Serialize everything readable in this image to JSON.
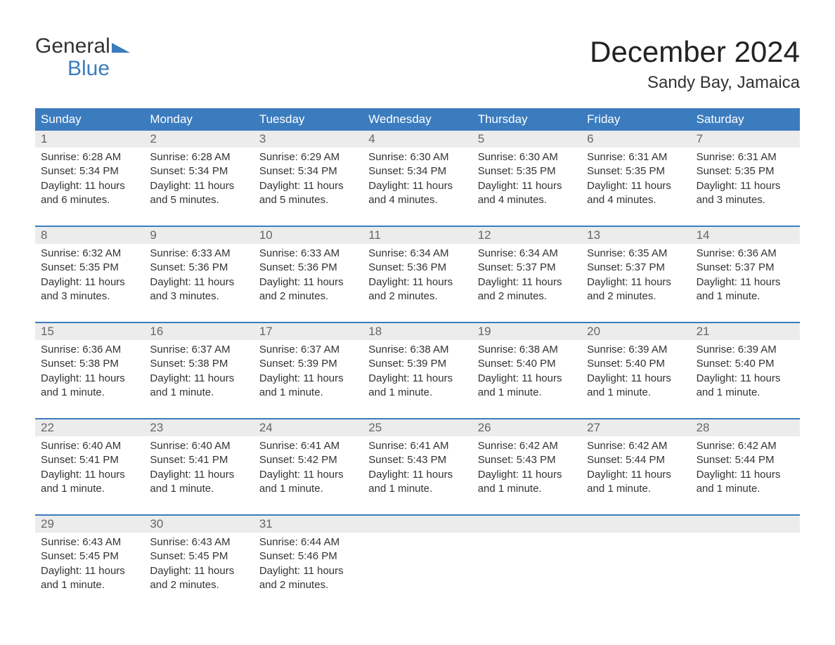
{
  "logo": {
    "word1": "General",
    "word2": "Blue"
  },
  "colors": {
    "brand_blue": "#3b7cbf",
    "header_bg": "#3b7cbf",
    "header_text": "#ffffff",
    "daynum_bg": "#ececec",
    "daynum_text": "#666666",
    "body_text": "#333333",
    "page_bg": "#ffffff"
  },
  "title": "December 2024",
  "subtitle": "Sandy Bay, Jamaica",
  "day_names": [
    "Sunday",
    "Monday",
    "Tuesday",
    "Wednesday",
    "Thursday",
    "Friday",
    "Saturday"
  ],
  "weeks": [
    [
      {
        "n": "1",
        "sunrise": "Sunrise: 6:28 AM",
        "sunset": "Sunset: 5:34 PM",
        "d1": "Daylight: 11 hours",
        "d2": "and 6 minutes."
      },
      {
        "n": "2",
        "sunrise": "Sunrise: 6:28 AM",
        "sunset": "Sunset: 5:34 PM",
        "d1": "Daylight: 11 hours",
        "d2": "and 5 minutes."
      },
      {
        "n": "3",
        "sunrise": "Sunrise: 6:29 AM",
        "sunset": "Sunset: 5:34 PM",
        "d1": "Daylight: 11 hours",
        "d2": "and 5 minutes."
      },
      {
        "n": "4",
        "sunrise": "Sunrise: 6:30 AM",
        "sunset": "Sunset: 5:34 PM",
        "d1": "Daylight: 11 hours",
        "d2": "and 4 minutes."
      },
      {
        "n": "5",
        "sunrise": "Sunrise: 6:30 AM",
        "sunset": "Sunset: 5:35 PM",
        "d1": "Daylight: 11 hours",
        "d2": "and 4 minutes."
      },
      {
        "n": "6",
        "sunrise": "Sunrise: 6:31 AM",
        "sunset": "Sunset: 5:35 PM",
        "d1": "Daylight: 11 hours",
        "d2": "and 4 minutes."
      },
      {
        "n": "7",
        "sunrise": "Sunrise: 6:31 AM",
        "sunset": "Sunset: 5:35 PM",
        "d1": "Daylight: 11 hours",
        "d2": "and 3 minutes."
      }
    ],
    [
      {
        "n": "8",
        "sunrise": "Sunrise: 6:32 AM",
        "sunset": "Sunset: 5:35 PM",
        "d1": "Daylight: 11 hours",
        "d2": "and 3 minutes."
      },
      {
        "n": "9",
        "sunrise": "Sunrise: 6:33 AM",
        "sunset": "Sunset: 5:36 PM",
        "d1": "Daylight: 11 hours",
        "d2": "and 3 minutes."
      },
      {
        "n": "10",
        "sunrise": "Sunrise: 6:33 AM",
        "sunset": "Sunset: 5:36 PM",
        "d1": "Daylight: 11 hours",
        "d2": "and 2 minutes."
      },
      {
        "n": "11",
        "sunrise": "Sunrise: 6:34 AM",
        "sunset": "Sunset: 5:36 PM",
        "d1": "Daylight: 11 hours",
        "d2": "and 2 minutes."
      },
      {
        "n": "12",
        "sunrise": "Sunrise: 6:34 AM",
        "sunset": "Sunset: 5:37 PM",
        "d1": "Daylight: 11 hours",
        "d2": "and 2 minutes."
      },
      {
        "n": "13",
        "sunrise": "Sunrise: 6:35 AM",
        "sunset": "Sunset: 5:37 PM",
        "d1": "Daylight: 11 hours",
        "d2": "and 2 minutes."
      },
      {
        "n": "14",
        "sunrise": "Sunrise: 6:36 AM",
        "sunset": "Sunset: 5:37 PM",
        "d1": "Daylight: 11 hours",
        "d2": "and 1 minute."
      }
    ],
    [
      {
        "n": "15",
        "sunrise": "Sunrise: 6:36 AM",
        "sunset": "Sunset: 5:38 PM",
        "d1": "Daylight: 11 hours",
        "d2": "and 1 minute."
      },
      {
        "n": "16",
        "sunrise": "Sunrise: 6:37 AM",
        "sunset": "Sunset: 5:38 PM",
        "d1": "Daylight: 11 hours",
        "d2": "and 1 minute."
      },
      {
        "n": "17",
        "sunrise": "Sunrise: 6:37 AM",
        "sunset": "Sunset: 5:39 PM",
        "d1": "Daylight: 11 hours",
        "d2": "and 1 minute."
      },
      {
        "n": "18",
        "sunrise": "Sunrise: 6:38 AM",
        "sunset": "Sunset: 5:39 PM",
        "d1": "Daylight: 11 hours",
        "d2": "and 1 minute."
      },
      {
        "n": "19",
        "sunrise": "Sunrise: 6:38 AM",
        "sunset": "Sunset: 5:40 PM",
        "d1": "Daylight: 11 hours",
        "d2": "and 1 minute."
      },
      {
        "n": "20",
        "sunrise": "Sunrise: 6:39 AM",
        "sunset": "Sunset: 5:40 PM",
        "d1": "Daylight: 11 hours",
        "d2": "and 1 minute."
      },
      {
        "n": "21",
        "sunrise": "Sunrise: 6:39 AM",
        "sunset": "Sunset: 5:40 PM",
        "d1": "Daylight: 11 hours",
        "d2": "and 1 minute."
      }
    ],
    [
      {
        "n": "22",
        "sunrise": "Sunrise: 6:40 AM",
        "sunset": "Sunset: 5:41 PM",
        "d1": "Daylight: 11 hours",
        "d2": "and 1 minute."
      },
      {
        "n": "23",
        "sunrise": "Sunrise: 6:40 AM",
        "sunset": "Sunset: 5:41 PM",
        "d1": "Daylight: 11 hours",
        "d2": "and 1 minute."
      },
      {
        "n": "24",
        "sunrise": "Sunrise: 6:41 AM",
        "sunset": "Sunset: 5:42 PM",
        "d1": "Daylight: 11 hours",
        "d2": "and 1 minute."
      },
      {
        "n": "25",
        "sunrise": "Sunrise: 6:41 AM",
        "sunset": "Sunset: 5:43 PM",
        "d1": "Daylight: 11 hours",
        "d2": "and 1 minute."
      },
      {
        "n": "26",
        "sunrise": "Sunrise: 6:42 AM",
        "sunset": "Sunset: 5:43 PM",
        "d1": "Daylight: 11 hours",
        "d2": "and 1 minute."
      },
      {
        "n": "27",
        "sunrise": "Sunrise: 6:42 AM",
        "sunset": "Sunset: 5:44 PM",
        "d1": "Daylight: 11 hours",
        "d2": "and 1 minute."
      },
      {
        "n": "28",
        "sunrise": "Sunrise: 6:42 AM",
        "sunset": "Sunset: 5:44 PM",
        "d1": "Daylight: 11 hours",
        "d2": "and 1 minute."
      }
    ],
    [
      {
        "n": "29",
        "sunrise": "Sunrise: 6:43 AM",
        "sunset": "Sunset: 5:45 PM",
        "d1": "Daylight: 11 hours",
        "d2": "and 1 minute."
      },
      {
        "n": "30",
        "sunrise": "Sunrise: 6:43 AM",
        "sunset": "Sunset: 5:45 PM",
        "d1": "Daylight: 11 hours",
        "d2": "and 2 minutes."
      },
      {
        "n": "31",
        "sunrise": "Sunrise: 6:44 AM",
        "sunset": "Sunset: 5:46 PM",
        "d1": "Daylight: 11 hours",
        "d2": "and 2 minutes."
      },
      null,
      null,
      null,
      null
    ]
  ]
}
